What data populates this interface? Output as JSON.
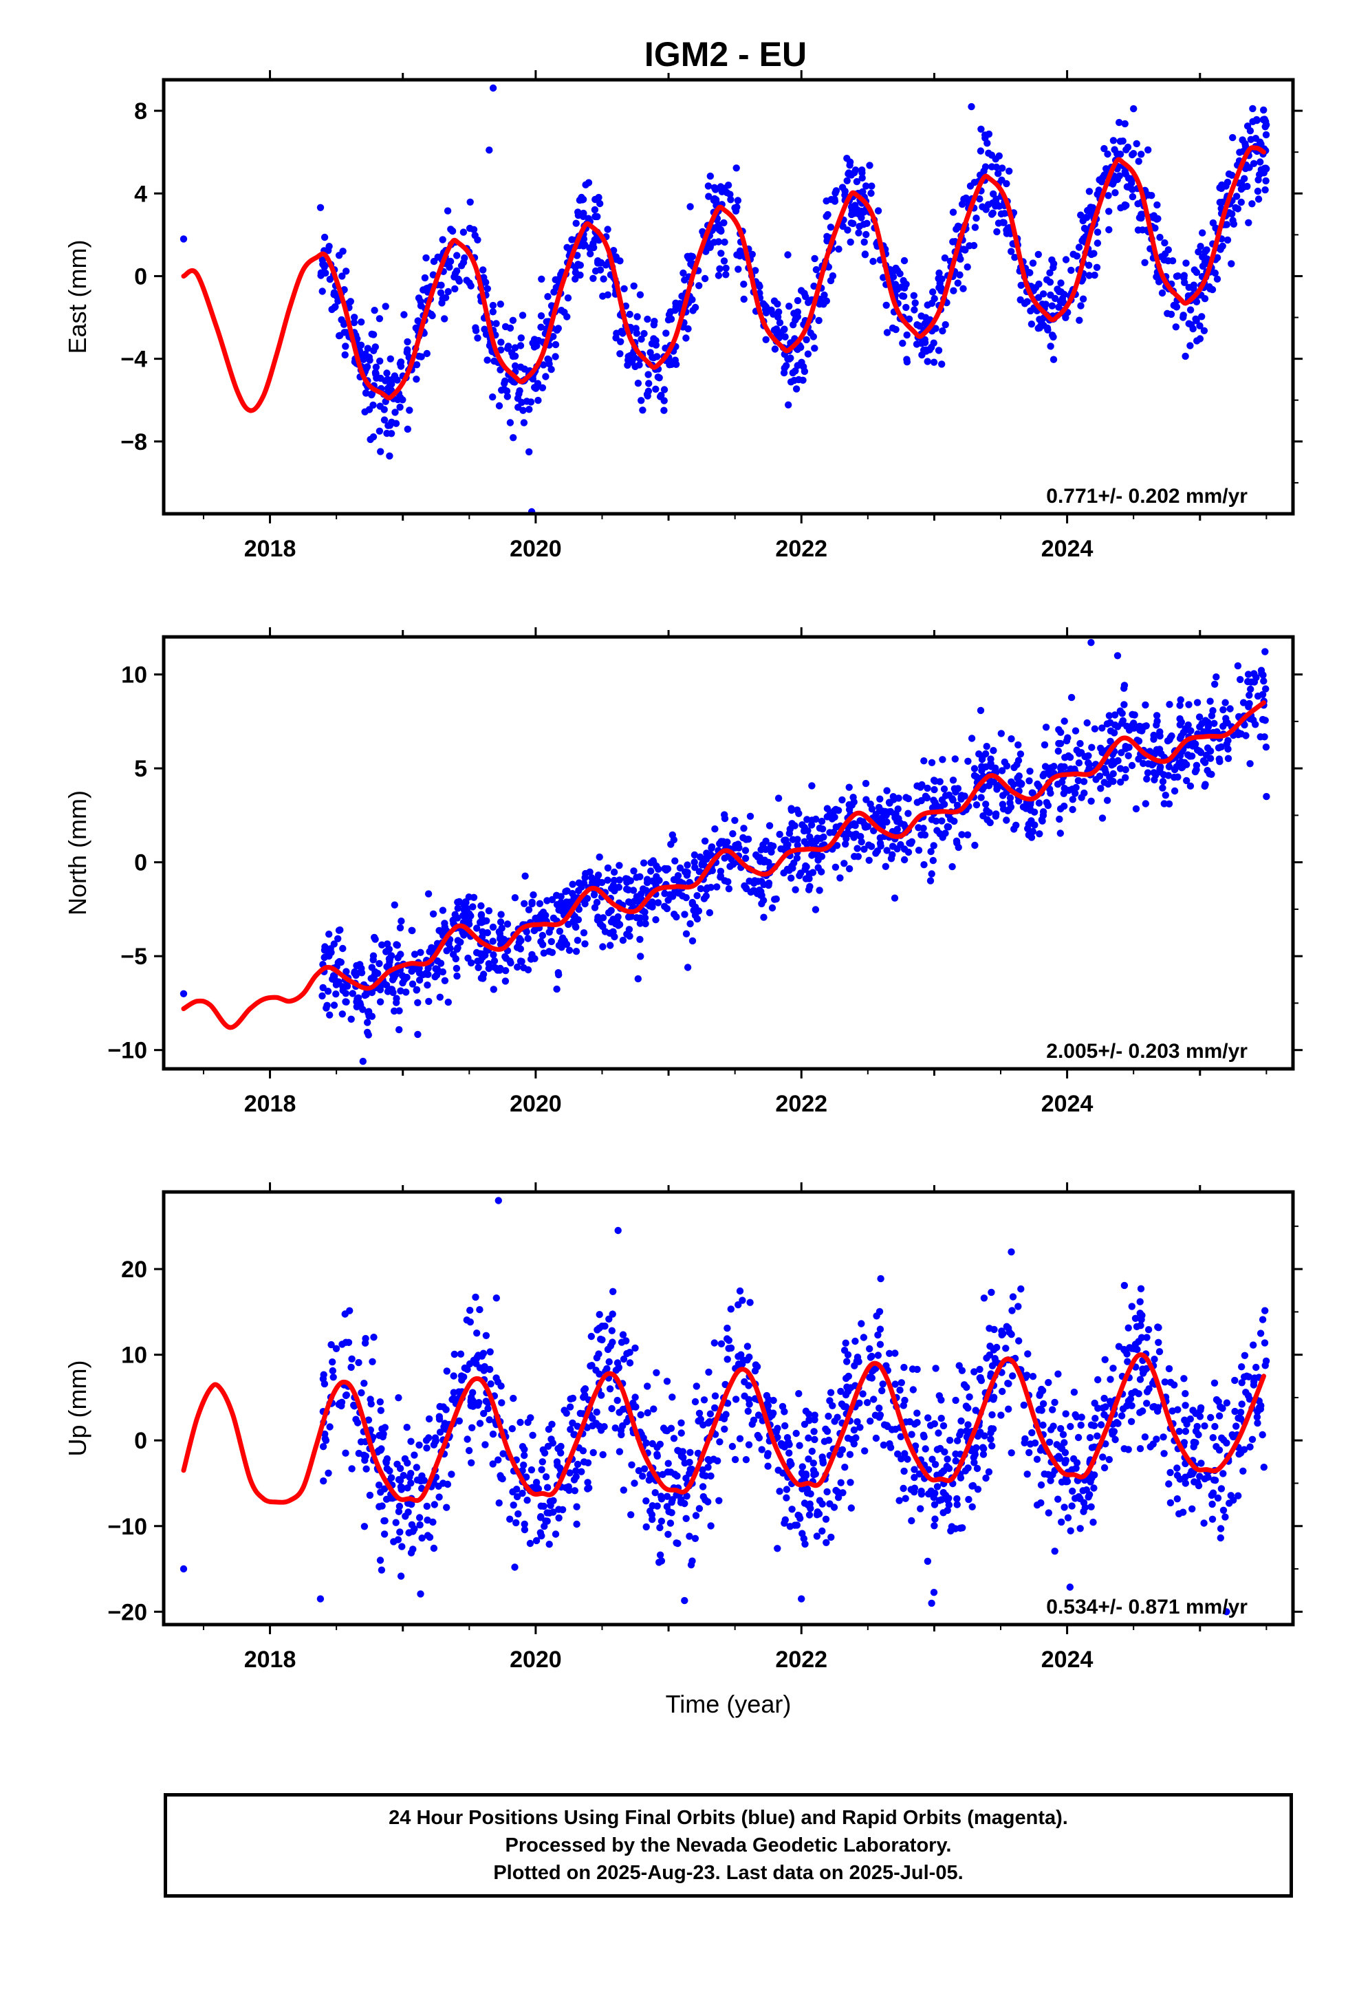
{
  "title": "IGM2 - EU",
  "footer": {
    "lines": [
      "24 Hour Positions Using Final Orbits (blue) and Rapid Orbits (magenta).",
      "Processed by the Nevada Geodetic Laboratory.",
      "Plotted on 2025-Aug-23. Last data on 2025-Jul-05."
    ]
  },
  "colors": {
    "points": "#0000ff",
    "model": "#ff0000",
    "frame": "#000000"
  },
  "chart_data": [
    {
      "type": "scatter",
      "ylabel": "East (mm)",
      "xlabel": "",
      "xlim": [
        2017.2,
        2025.7
      ],
      "ylim": [
        -11.5,
        9.5
      ],
      "xticks": [
        2018,
        2020,
        2022,
        2024
      ],
      "yticks": [
        -8,
        -4,
        0,
        4,
        8
      ],
      "ytick_labels": [
        "−8",
        "−4",
        "0",
        "4",
        "8"
      ],
      "rate_text": "0.771+/- 0.202 mm/yr",
      "model": {
        "x": [
          2017.35,
          2017.45,
          2017.6,
          2017.75,
          2017.85,
          2017.95,
          2018.05,
          2018.15,
          2018.25,
          2018.35,
          2018.43,
          2018.55,
          2018.7,
          2018.85,
          2018.92,
          2019.05,
          2019.2,
          2019.35,
          2019.42,
          2019.55,
          2019.7,
          2019.85,
          2019.92,
          2020.05,
          2020.2,
          2020.35,
          2020.42,
          2020.55,
          2020.7,
          2020.85,
          2020.92,
          2021.05,
          2021.2,
          2021.35,
          2021.42,
          2021.55,
          2021.7,
          2021.85,
          2021.92,
          2022.05,
          2022.2,
          2022.35,
          2022.42,
          2022.55,
          2022.7,
          2022.85,
          2022.92,
          2023.05,
          2023.2,
          2023.35,
          2023.42,
          2023.55,
          2023.7,
          2023.85,
          2023.92,
          2024.05,
          2024.2,
          2024.35,
          2024.42,
          2024.55,
          2024.7,
          2024.85,
          2024.92,
          2025.05,
          2025.2,
          2025.35,
          2025.42,
          2025.48
        ],
        "y": [
          0.0,
          0.1,
          -2.5,
          -5.5,
          -6.5,
          -5.8,
          -3.8,
          -1.5,
          0.3,
          0.9,
          0.9,
          -1.2,
          -4.8,
          -5.7,
          -5.8,
          -4.5,
          -1.2,
          1.4,
          1.6,
          0.4,
          -3.6,
          -4.9,
          -5.0,
          -3.8,
          -0.4,
          2.2,
          2.4,
          1.2,
          -2.8,
          -4.2,
          -4.3,
          -3.0,
          0.4,
          3.0,
          3.2,
          2.0,
          -2.0,
          -3.4,
          -3.5,
          -2.3,
          1.1,
          3.7,
          3.9,
          2.7,
          -1.3,
          -2.7,
          -2.8,
          -1.5,
          1.9,
          4.5,
          4.7,
          3.5,
          -0.5,
          -1.9,
          -2.0,
          -0.8,
          2.6,
          5.3,
          5.5,
          4.3,
          0.3,
          -1.1,
          -1.2,
          0.0,
          3.4,
          5.9,
          6.2,
          6.0
        ]
      },
      "points": {
        "seed": 11,
        "jitter": 1.2,
        "count": 1500,
        "outliers": [
          [
            2017.35,
            1.8
          ],
          [
            2019.68,
            9.1
          ],
          [
            2019.65,
            6.1
          ],
          [
            2019.97,
            -11.4
          ],
          [
            2018.9,
            -8.7
          ],
          [
            2019.95,
            -8.5
          ],
          [
            2023.28,
            8.2
          ],
          [
            2024.5,
            8.1
          ]
        ]
      }
    },
    {
      "type": "scatter",
      "ylabel": "North (mm)",
      "xlabel": "",
      "xlim": [
        2017.2,
        2025.7
      ],
      "ylim": [
        -11.0,
        12.0
      ],
      "xticks": [
        2018,
        2020,
        2022,
        2024
      ],
      "yticks": [
        -10,
        -5,
        0,
        5,
        10
      ],
      "ytick_labels": [
        "−10",
        "−5",
        "0",
        "5",
        "10"
      ],
      "rate_text": "2.005+/- 0.203 mm/yr",
      "model": {
        "x": [
          2017.35,
          2017.45,
          2017.55,
          2017.7,
          2017.85,
          2017.95,
          2018.05,
          2018.15,
          2018.25,
          2018.35,
          2018.45,
          2018.6,
          2018.75,
          2018.9,
          2019.05,
          2019.2,
          2019.35,
          2019.45,
          2019.6,
          2019.75,
          2019.9,
          2020.05,
          2020.2,
          2020.35,
          2020.45,
          2020.6,
          2020.75,
          2020.9,
          2021.05,
          2021.2,
          2021.35,
          2021.45,
          2021.6,
          2021.75,
          2021.9,
          2022.05,
          2022.2,
          2022.35,
          2022.45,
          2022.6,
          2022.75,
          2022.9,
          2023.05,
          2023.2,
          2023.35,
          2023.45,
          2023.6,
          2023.75,
          2023.9,
          2024.05,
          2024.2,
          2024.35,
          2024.45,
          2024.6,
          2024.75,
          2024.9,
          2025.05,
          2025.2,
          2025.35,
          2025.48
        ],
        "y": [
          -7.8,
          -7.4,
          -7.6,
          -8.8,
          -7.8,
          -7.3,
          -7.2,
          -7.4,
          -7.0,
          -6.0,
          -5.6,
          -6.3,
          -6.7,
          -5.8,
          -5.4,
          -5.3,
          -3.8,
          -3.4,
          -4.3,
          -4.6,
          -3.5,
          -3.3,
          -3.2,
          -1.8,
          -1.4,
          -2.3,
          -2.6,
          -1.5,
          -1.3,
          -1.2,
          0.2,
          0.6,
          -0.3,
          -0.6,
          0.5,
          0.7,
          0.8,
          2.2,
          2.6,
          1.7,
          1.4,
          2.5,
          2.7,
          2.8,
          4.2,
          4.6,
          3.7,
          3.4,
          4.5,
          4.7,
          4.8,
          6.2,
          6.6,
          5.7,
          5.4,
          6.5,
          6.7,
          6.8,
          7.8,
          8.5
        ]
      },
      "points": {
        "seed": 23,
        "jitter": 1.2,
        "count": 1500,
        "outliers": [
          [
            2017.35,
            -7.0
          ],
          [
            2024.18,
            11.7
          ],
          [
            2024.38,
            11.0
          ],
          [
            2018.7,
            -10.6
          ],
          [
            2025.5,
            3.5
          ]
        ]
      }
    },
    {
      "type": "scatter",
      "ylabel": "Up (mm)",
      "xlabel": "Time (year)",
      "xlim": [
        2017.2,
        2025.7
      ],
      "ylim": [
        -21.5,
        29.0
      ],
      "xticks": [
        2018,
        2020,
        2022,
        2024
      ],
      "yticks": [
        -20,
        -10,
        0,
        10,
        20
      ],
      "ytick_labels": [
        "−20",
        "−10",
        "0",
        "10",
        "20"
      ],
      "rate_text": "0.534+/- 0.871 mm/yr",
      "model": {
        "x": [
          2017.35,
          2017.45,
          2017.55,
          2017.62,
          2017.72,
          2017.85,
          2017.95,
          2018.05,
          2018.15,
          2018.25,
          2018.35,
          2018.45,
          2018.55,
          2018.65,
          2018.8,
          2018.95,
          2019.05,
          2019.15,
          2019.3,
          2019.45,
          2019.55,
          2019.65,
          2019.8,
          2019.95,
          2020.05,
          2020.15,
          2020.3,
          2020.45,
          2020.55,
          2020.65,
          2020.8,
          2020.95,
          2021.05,
          2021.15,
          2021.3,
          2021.45,
          2021.55,
          2021.65,
          2021.8,
          2021.95,
          2022.05,
          2022.15,
          2022.3,
          2022.45,
          2022.55,
          2022.65,
          2022.8,
          2022.95,
          2023.05,
          2023.15,
          2023.3,
          2023.45,
          2023.55,
          2023.65,
          2023.8,
          2023.95,
          2024.05,
          2024.15,
          2024.3,
          2024.45,
          2024.55,
          2024.65,
          2024.8,
          2024.95,
          2025.05,
          2025.15,
          2025.3,
          2025.48
        ],
        "y": [
          -3.5,
          2.5,
          6.0,
          6.2,
          3.0,
          -4.5,
          -6.8,
          -7.2,
          -7.0,
          -5.5,
          -0.5,
          4.5,
          6.8,
          5.0,
          -2.5,
          -6.5,
          -6.8,
          -6.5,
          -1.0,
          5.0,
          7.2,
          5.5,
          -1.5,
          -5.8,
          -6.2,
          -5.8,
          -0.5,
          5.5,
          7.8,
          6.0,
          -1.0,
          -5.2,
          -5.8,
          -5.5,
          0.0,
          6.0,
          8.3,
          6.5,
          -0.5,
          -4.8,
          -5.0,
          -4.8,
          0.5,
          6.8,
          9.0,
          7.0,
          0.0,
          -4.2,
          -4.5,
          -4.2,
          1.0,
          7.2,
          9.5,
          7.5,
          0.5,
          -3.5,
          -4.0,
          -3.8,
          1.5,
          7.6,
          10.0,
          8.0,
          1.0,
          -3.0,
          -3.4,
          -3.2,
          0.5,
          7.5
        ]
      },
      "points": {
        "seed": 37,
        "jitter": 4.5,
        "count": 1500,
        "outliers": [
          [
            2017.35,
            -15.0
          ],
          [
            2019.72,
            28.0
          ],
          [
            2020.62,
            24.5
          ],
          [
            2023.58,
            22.0
          ],
          [
            2018.38,
            -18.5
          ],
          [
            2021.12,
            -18.7
          ],
          [
            2022.0,
            -18.5
          ],
          [
            2022.98,
            -19.0
          ],
          [
            2025.2,
            -20.0
          ]
        ]
      }
    }
  ]
}
